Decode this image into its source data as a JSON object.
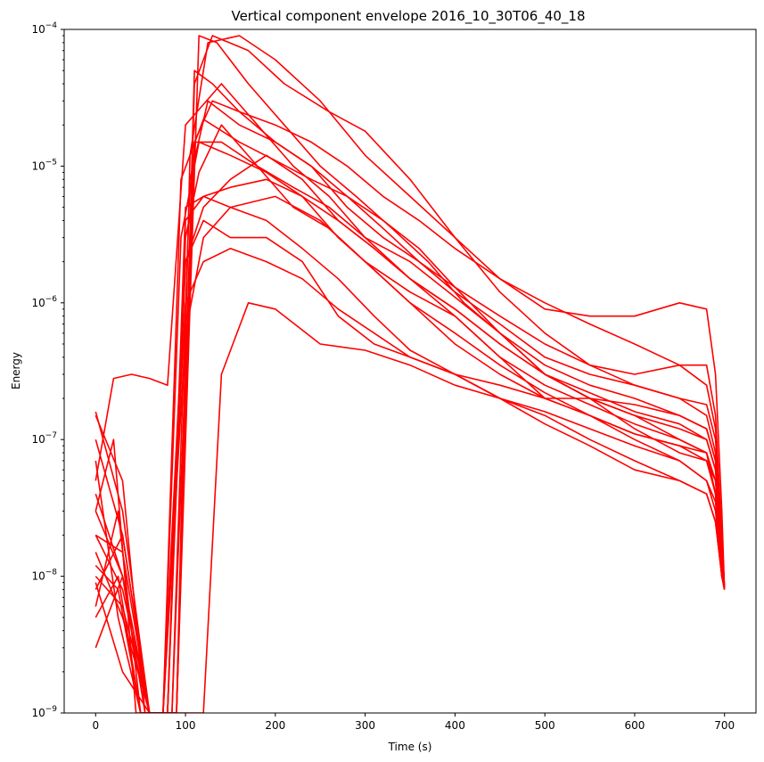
{
  "chart_data": {
    "type": "line",
    "title": "Vertical component envelope 2016_10_30T06_40_18",
    "xlabel": "Time (s)",
    "ylabel": "Energy",
    "xlim": [
      -35,
      735
    ],
    "ylim": [
      1e-09,
      0.0001
    ],
    "yscale": "log",
    "x_ticks": [
      0,
      100,
      200,
      300,
      400,
      500,
      600,
      700
    ],
    "x_tick_labels": [
      "0",
      "100",
      "200",
      "300",
      "400",
      "500",
      "600",
      "700"
    ],
    "y_ticks": [
      1e-09,
      1e-08,
      1e-07,
      1e-06,
      1e-05,
      0.0001
    ],
    "y_tick_labels": [
      {
        "base": "10",
        "exp": "−9"
      },
      {
        "base": "10",
        "exp": "−8"
      },
      {
        "base": "10",
        "exp": "−7"
      },
      {
        "base": "10",
        "exp": "−6"
      },
      {
        "base": "10",
        "exp": "−5"
      },
      {
        "base": "10",
        "exp": "−4"
      }
    ],
    "grid": false,
    "legend": "none",
    "line_color": "#ff0000",
    "series": [
      {
        "x": [
          0,
          30,
          60,
          90,
          105,
          125,
          160,
          200,
          250,
          300,
          350,
          400,
          450,
          500,
          550,
          600,
          650,
          680,
          690,
          697,
          700
        ],
        "y": [
          1.6e-07,
          3e-08,
          1e-09,
          1e-09,
          1.2e-05,
          8e-05,
          9e-05,
          6e-05,
          3e-05,
          1.2e-05,
          6e-06,
          3e-06,
          1.5e-06,
          9e-07,
          8e-07,
          8e-07,
          1e-06,
          9e-07,
          3e-07,
          3e-08,
          8e-09
        ]
      },
      {
        "x": [
          0,
          30,
          60,
          90,
          110,
          130,
          170,
          210,
          260,
          300,
          350,
          400,
          450,
          500,
          550,
          600,
          650,
          680,
          690,
          697,
          700
        ],
        "y": [
          1e-07,
          2e-08,
          1e-09,
          1e-09,
          4e-05,
          9e-05,
          7e-05,
          4e-05,
          2.5e-05,
          1.8e-05,
          8e-06,
          3e-06,
          1.2e-06,
          6e-07,
          3.5e-07,
          3e-07,
          3.5e-07,
          3.5e-07,
          1.5e-07,
          2e-08,
          8e-09
        ]
      },
      {
        "x": [
          0,
          20,
          40,
          60,
          80,
          100,
          140,
          180,
          220,
          260,
          300,
          350,
          400,
          450,
          500,
          550,
          600,
          650,
          680,
          690,
          697,
          700
        ],
        "y": [
          5e-08,
          2.8e-07,
          3e-07,
          2.8e-07,
          2.5e-07,
          2e-05,
          4e-05,
          2e-05,
          1e-05,
          6e-06,
          3e-06,
          1.5e-06,
          9e-07,
          5e-07,
          3e-07,
          2e-07,
          1.5e-07,
          1.2e-07,
          1e-07,
          6e-08,
          1.5e-08,
          8e-09
        ]
      },
      {
        "x": [
          0,
          20,
          45,
          60,
          75,
          95,
          120,
          160,
          200,
          240,
          280,
          320,
          360,
          400,
          450,
          500,
          550,
          600,
          650,
          680,
          690,
          697,
          700
        ],
        "y": [
          3e-08,
          1e-07,
          1e-09,
          1e-09,
          1e-09,
          8e-06,
          2.2e-05,
          1.5e-05,
          1.1e-05,
          8e-06,
          6e-06,
          4e-06,
          2.5e-06,
          1.3e-06,
          6e-07,
          3e-07,
          2e-07,
          1.2e-07,
          8e-08,
          7e-08,
          4e-08,
          1.2e-08,
          8e-09
        ]
      },
      {
        "x": [
          0,
          25,
          50,
          70,
          90,
          110,
          140,
          180,
          220,
          260,
          300,
          350,
          400,
          450,
          500,
          550,
          600,
          650,
          680,
          690,
          697,
          700
        ],
        "y": [
          7e-08,
          5e-09,
          1e-09,
          1e-09,
          1e-09,
          1.5e-05,
          1.5e-05,
          1e-05,
          7e-06,
          5e-06,
          3e-06,
          2e-06,
          1.1e-06,
          6e-07,
          3e-07,
          2e-07,
          1.5e-07,
          1e-07,
          8e-08,
          5e-08,
          1.5e-08,
          8e-09
        ]
      },
      {
        "x": [
          0,
          30,
          60,
          80,
          100,
          120,
          150,
          190,
          230,
          270,
          300,
          350,
          400,
          450,
          500,
          550,
          600,
          650,
          680,
          690,
          697,
          700
        ],
        "y": [
          2e-08,
          8e-09,
          1e-09,
          1e-09,
          5e-06,
          6e-06,
          7e-06,
          8e-06,
          6e-06,
          3e-06,
          2e-06,
          1.2e-06,
          8e-07,
          4e-07,
          2e-07,
          1.5e-07,
          1e-07,
          7e-08,
          5e-08,
          3.5e-08,
          1e-08,
          8e-09
        ]
      },
      {
        "x": [
          0,
          30,
          60,
          80,
          100,
          115,
          140,
          180,
          220,
          260,
          300,
          350,
          400,
          450,
          500,
          550,
          600,
          650,
          680,
          690,
          697,
          700
        ],
        "y": [
          1e-08,
          6e-09,
          1e-09,
          1e-09,
          3e-06,
          9e-06,
          2e-05,
          1e-05,
          5e-06,
          3.5e-06,
          2e-06,
          1e-06,
          5e-07,
          3e-07,
          2e-07,
          1.5e-07,
          1.1e-07,
          9e-08,
          7e-08,
          5e-08,
          1.3e-08,
          8e-09
        ]
      },
      {
        "x": [
          0,
          25,
          50,
          75,
          100,
          120,
          150,
          200,
          250,
          300,
          350,
          400,
          450,
          500,
          550,
          600,
          650,
          680,
          690,
          697,
          700
        ],
        "y": [
          5e-09,
          1e-08,
          1e-09,
          1e-09,
          6e-07,
          3e-06,
          5e-06,
          6e-06,
          4e-06,
          2e-06,
          1e-06,
          6e-07,
          3.5e-07,
          2.2e-07,
          1.5e-07,
          1.1e-07,
          9e-08,
          8e-08,
          4e-08,
          1.2e-08,
          8e-09
        ]
      },
      {
        "x": [
          0,
          30,
          60,
          90,
          120,
          140,
          170,
          200,
          250,
          300,
          350,
          400,
          450,
          500,
          550,
          600,
          650,
          680,
          690,
          697,
          700
        ],
        "y": [
          3e-09,
          1e-08,
          1e-09,
          1e-09,
          1e-09,
          3e-07,
          1e-06,
          9e-07,
          5e-07,
          4.5e-07,
          3.5e-07,
          2.5e-07,
          2e-07,
          1.6e-07,
          1.2e-07,
          9e-08,
          7e-08,
          5e-08,
          3e-08,
          1e-08,
          8e-09
        ]
      },
      {
        "x": [
          0,
          30,
          55,
          80,
          100,
          120,
          150,
          190,
          230,
          270,
          310,
          350,
          400,
          450,
          500,
          550,
          600,
          650,
          680,
          690,
          697,
          700
        ],
        "y": [
          1.5e-07,
          5e-08,
          1e-09,
          1e-09,
          2e-06,
          4e-06,
          3e-06,
          3e-06,
          2e-06,
          8e-07,
          5e-07,
          4e-07,
          3e-07,
          2.5e-07,
          2e-07,
          2e-07,
          1.8e-07,
          1.5e-07,
          1.2e-07,
          7e-08,
          1.5e-08,
          8e-09
        ]
      },
      {
        "x": [
          0,
          30,
          60,
          90,
          110,
          130,
          160,
          200,
          240,
          280,
          320,
          360,
          400,
          450,
          500,
          550,
          600,
          650,
          680,
          690,
          697,
          700
        ],
        "y": [
          4e-08,
          1e-08,
          1e-09,
          1e-09,
          5e-05,
          4e-05,
          2.5e-05,
          1.5e-05,
          1e-05,
          6e-06,
          3.5e-06,
          2e-06,
          1.2e-06,
          7e-07,
          4e-07,
          3e-07,
          2.5e-07,
          2e-07,
          1.8e-07,
          1e-07,
          2e-08,
          8e-09
        ]
      },
      {
        "x": [
          0,
          25,
          50,
          75,
          100,
          120,
          150,
          190,
          230,
          270,
          310,
          350,
          400,
          450,
          500,
          550,
          600,
          650,
          680,
          690,
          697,
          700
        ],
        "y": [
          6e-09,
          3e-08,
          1e-09,
          1e-09,
          2e-06,
          5e-06,
          8e-06,
          1.2e-05,
          8e-06,
          4e-06,
          2.5e-06,
          1.5e-06,
          9e-07,
          5e-07,
          3e-07,
          2.2e-07,
          1.6e-07,
          1.3e-07,
          1e-07,
          6e-08,
          1.5e-08,
          8e-09
        ]
      },
      {
        "x": [
          0,
          25,
          50,
          75,
          100,
          120,
          150,
          190,
          230,
          270,
          310,
          350,
          400,
          450,
          500,
          550,
          600,
          650,
          680,
          690,
          697,
          700
        ],
        "y": [
          1.2e-08,
          8e-09,
          1e-09,
          1e-09,
          1e-06,
          2e-06,
          2.5e-06,
          2e-06,
          1.5e-06,
          9e-07,
          6e-07,
          4e-07,
          3e-07,
          2e-07,
          1.3e-07,
          9e-08,
          6e-08,
          5e-08,
          4e-08,
          2.5e-08,
          1e-08,
          8e-09
        ]
      },
      {
        "x": [
          0,
          30,
          60,
          85,
          105,
          125,
          160,
          200,
          240,
          280,
          320,
          360,
          400,
          450,
          500,
          550,
          600,
          650,
          680,
          690,
          697,
          700
        ],
        "y": [
          8e-09,
          2e-08,
          1e-09,
          1e-09,
          8e-06,
          3e-05,
          2e-05,
          1.5e-05,
          1e-05,
          5e-06,
          3e-06,
          2e-06,
          1.3e-06,
          8e-07,
          5e-07,
          3.5e-07,
          2.5e-07,
          2e-07,
          1.5e-07,
          8e-08,
          1.5e-08,
          8e-09
        ]
      },
      {
        "x": [
          0,
          30,
          60,
          80,
          100,
          120,
          150,
          190,
          230,
          270,
          310,
          350,
          400,
          450,
          500,
          550,
          600,
          650,
          680,
          690,
          697,
          700
        ],
        "y": [
          2e-08,
          1.5e-08,
          1e-09,
          1e-09,
          4e-06,
          6e-06,
          5e-06,
          4e-06,
          2.5e-06,
          1.5e-06,
          8e-07,
          4.5e-07,
          3e-07,
          2e-07,
          1.5e-07,
          1e-07,
          7e-08,
          5e-08,
          4e-08,
          2.5e-08,
          1e-08,
          8e-09
        ]
      },
      {
        "x": [
          0,
          30,
          60,
          90,
          115,
          135,
          170,
          210,
          250,
          290,
          330,
          370,
          410,
          450,
          500,
          550,
          600,
          650,
          680,
          690,
          697,
          700
        ],
        "y": [
          9e-09,
          2e-09,
          1e-09,
          1e-09,
          9e-05,
          8e-05,
          4e-05,
          2e-05,
          1e-05,
          6e-06,
          3.5e-06,
          2e-06,
          1e-06,
          6e-07,
          3.5e-07,
          2.5e-07,
          2e-07,
          1.5e-07,
          1.2e-07,
          7e-08,
          1.5e-08,
          8e-09
        ]
      },
      {
        "x": [
          0,
          30,
          55,
          75,
          95,
          115,
          150,
          190,
          230,
          270,
          310,
          350,
          400,
          450,
          500,
          550,
          600,
          650,
          680,
          690,
          697,
          700
        ],
        "y": [
          3e-08,
          1e-08,
          1e-09,
          1e-09,
          3e-06,
          1.5e-05,
          1.2e-05,
          9e-06,
          6e-06,
          4e-06,
          2.5e-06,
          1.5e-06,
          8e-07,
          4e-07,
          2.5e-07,
          1.8e-07,
          1.3e-07,
          1e-07,
          8e-08,
          4e-08,
          1.2e-08,
          8e-09
        ]
      },
      {
        "x": [
          0,
          30,
          60,
          85,
          110,
          130,
          160,
          200,
          240,
          280,
          320,
          360,
          400,
          450,
          500,
          550,
          600,
          650,
          680,
          690,
          697,
          700
        ],
        "y": [
          1.5e-08,
          5e-09,
          1e-09,
          1e-09,
          1.5e-05,
          3e-05,
          2.5e-05,
          2e-05,
          1.5e-05,
          1e-05,
          6e-06,
          4e-06,
          2.5e-06,
          1.5e-06,
          1e-06,
          7e-07,
          5e-07,
          3.5e-07,
          2.5e-07,
          1.2e-07,
          2e-08,
          8e-09
        ]
      }
    ]
  }
}
